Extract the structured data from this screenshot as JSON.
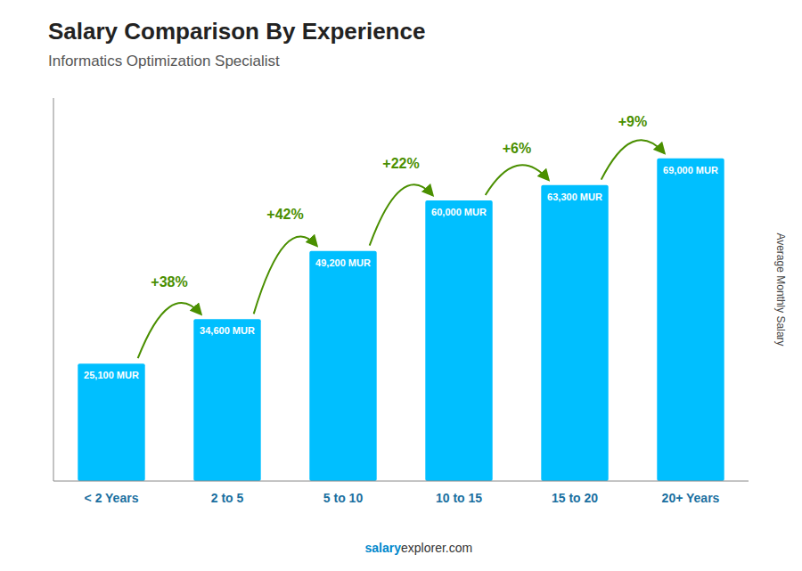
{
  "chart_data": {
    "type": "bar",
    "title": "Salary Comparison By Experience",
    "subtitle": "Informatics Optimization Specialist",
    "ylabel": "Average Monthly Salary",
    "categories": [
      "< 2 Years",
      "2 to 5",
      "5 to 10",
      "10 to 15",
      "15 to 20",
      "20+ Years"
    ],
    "values": [
      25100,
      34600,
      49200,
      60000,
      63300,
      69000
    ],
    "value_labels": [
      "25,100 MUR",
      "34,600 MUR",
      "49,200 MUR",
      "60,000 MUR",
      "63,300 MUR",
      "69,000 MUR"
    ],
    "data_labels": true,
    "annotations": [
      "+38%",
      "+42%",
      "+22%",
      "+6%",
      "+9%"
    ],
    "footer": [
      "salary",
      "explorer.com"
    ],
    "color": "#00bfff",
    "ylim": [
      0,
      81900
    ],
    "tick_labels": "x",
    "grid": false
  }
}
